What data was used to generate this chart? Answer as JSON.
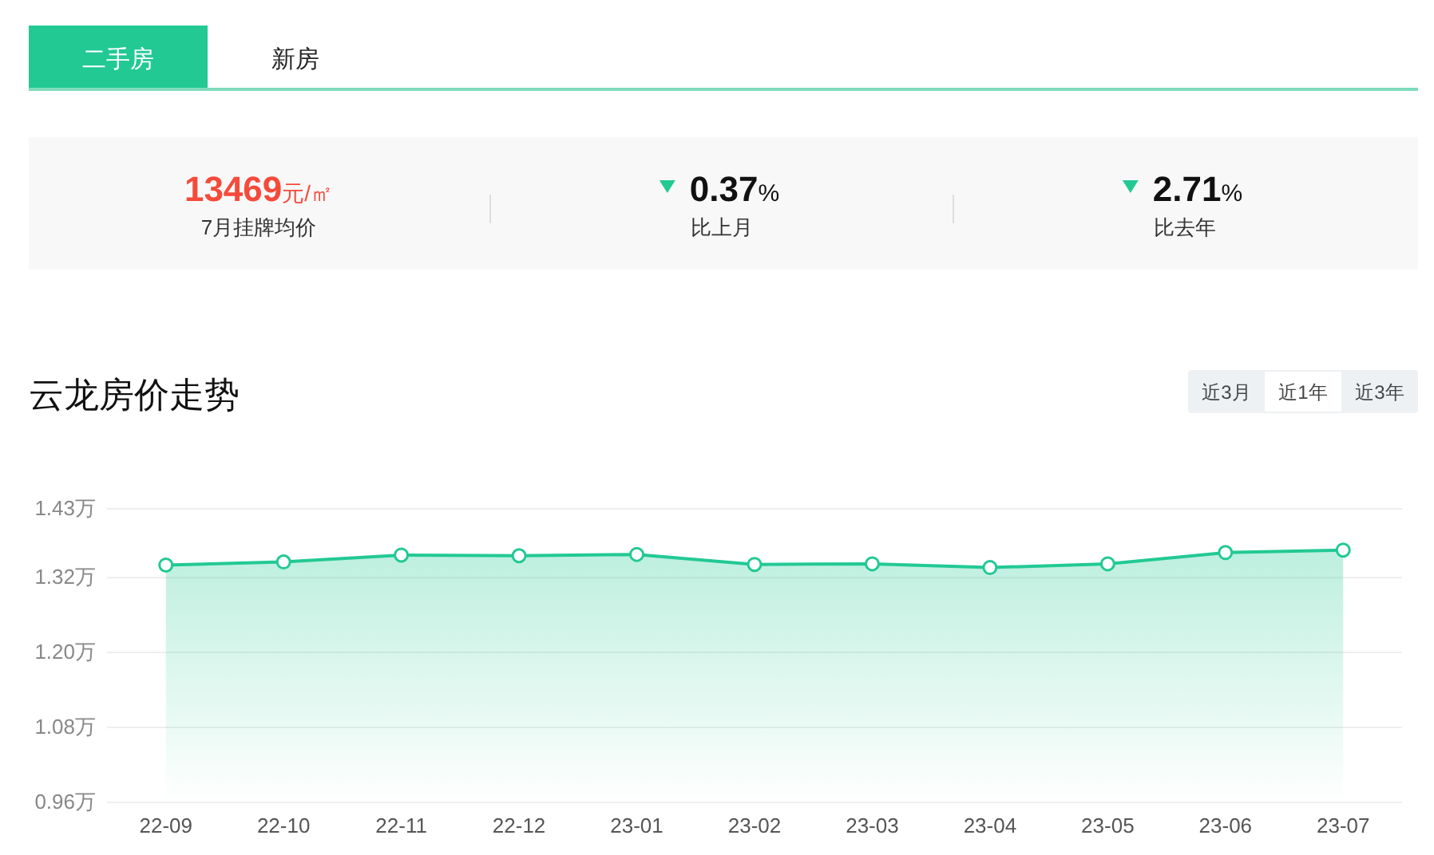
{
  "chart_data": [
    {
      "type": "other",
      "annotations": [
        "二手房",
        "新房",
        "13469元/㎡",
        "7月挂牌均价",
        "0.37%",
        "比上月",
        "2.71%",
        "比去年"
      ]
    },
    {
      "type": "area",
      "title": "云龙房价走势",
      "annotations": [
        "近3月",
        "近1年",
        "近3年"
      ],
      "categories": [
        "22-09",
        "22-10",
        "22-11",
        "22-12",
        "23-01",
        "23-02",
        "23-03",
        "23-04",
        "23-05",
        "23-06",
        "23-07"
      ],
      "series": [
        {
          "color": "#22c993",
          "values": [
            1.34,
            1.345,
            1.356,
            1.355,
            1.357,
            1.341,
            1.342,
            1.336,
            1.342,
            1.36,
            1.364
          ]
        }
      ],
      "ylim": [
        0.96,
        1.43
      ],
      "yticks": [
        {
          "value": 0.96,
          "label": "0.96万"
        },
        {
          "value": 1.08,
          "label": "1.08万"
        },
        {
          "value": 1.2,
          "label": "1.20万"
        },
        {
          "value": 1.32,
          "label": "1.32万"
        },
        {
          "value": 1.43,
          "label": "1.43万"
        }
      ],
      "grid": "y",
      "marker": "circle",
      "line_style": "solid"
    }
  ]
}
